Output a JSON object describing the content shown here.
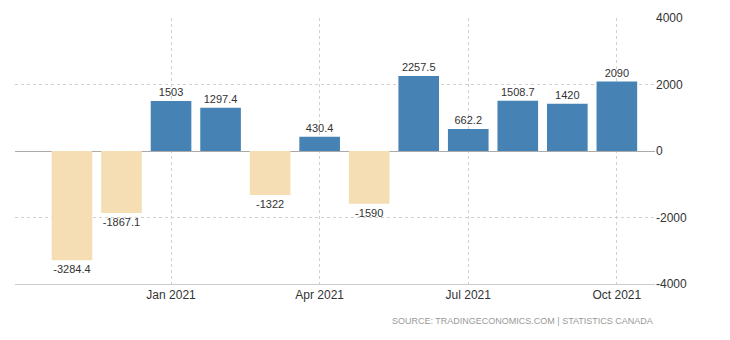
{
  "chart_data": {
    "type": "bar",
    "categories": [
      null,
      null,
      "Jan 2021",
      null,
      null,
      "Apr 2021",
      null,
      null,
      "Jul 2021",
      null,
      null,
      "Oct 2021"
    ],
    "values": [
      -3284.4,
      -1867.1,
      1503,
      1297.4,
      -1322,
      430.4,
      -1590,
      2257.5,
      662.2,
      1508.7,
      1420,
      2090
    ],
    "colors": [
      "#f5deb3",
      "#f5deb3",
      "#4682b4",
      "#4682b4",
      "#f5deb3",
      "#4682b4",
      "#f5deb3",
      "#4682b4",
      "#4682b4",
      "#4682b4",
      "#4682b4",
      "#4682b4"
    ],
    "ylim": [
      -4000,
      4000
    ],
    "yticks": [
      -4000,
      -2000,
      0,
      2000,
      4000
    ],
    "grid": true,
    "data_labels": true,
    "annotations": [
      "SOURCE: TRADINGECONOMICS.COM | STATISTICS CANADA"
    ]
  }
}
